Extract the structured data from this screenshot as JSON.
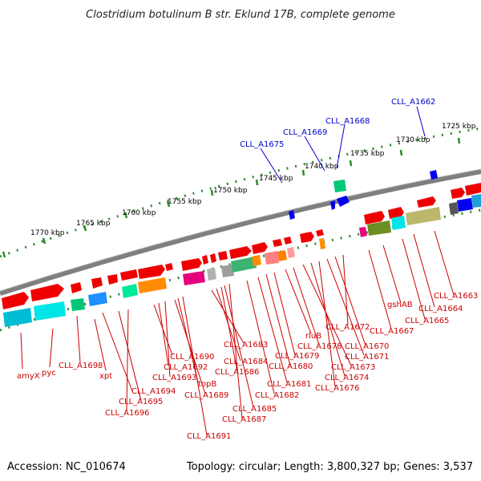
{
  "title": "Clostridium botulinum B str. Eklund 17B, complete genome",
  "footer": {
    "accession": "Accession: NC_010674",
    "topology": "Topology: circular; Length: 3,800,327 bp; Genes: 3,537"
  },
  "colors": {
    "backbone": "#808080",
    "tick": "#2e8b2e",
    "label_red": "#cc0000",
    "label_blue": "#0000cc"
  },
  "kbp_labels": [
    "1770 kbp",
    "1765 kbp",
    "1760 kbp",
    "1755 kbp",
    "1750 kbp",
    "1745 kbp",
    "1740 kbp",
    "1735 kbp",
    "1730 kbp",
    "1725 kbp"
  ],
  "blue_labels": [
    "CLL_A1662",
    "CLL_A1668",
    "CLL_A1669",
    "CLL_A1675"
  ],
  "red_labels": [
    "amyX",
    "pyc",
    "CLL_A1698",
    "xpt",
    "CLL_A1694",
    "CLL_A1695",
    "CLL_A1696",
    "CLL_A1690",
    "CLL_A1692",
    "CLL_A1693",
    "CLL_A1689",
    "topB",
    "CLL_A1691",
    "CLL_A1683",
    "CLL_A1684",
    "CLL_A1686",
    "CLL_A1685",
    "CLL_A1687",
    "CLL_A1682",
    "CLL_A1681",
    "CLL_A1680",
    "CLL_A1679",
    "rluB",
    "CLL_A1678",
    "CLL_A1673",
    "CLL_A1674",
    "CLL_A1676",
    "CLL_A1671",
    "CLL_A1670",
    "CLL_A1672",
    "CLL_A1667",
    "gshAB",
    "CLL_A1665",
    "CLL_A1664",
    "CLL_A1663"
  ]
}
